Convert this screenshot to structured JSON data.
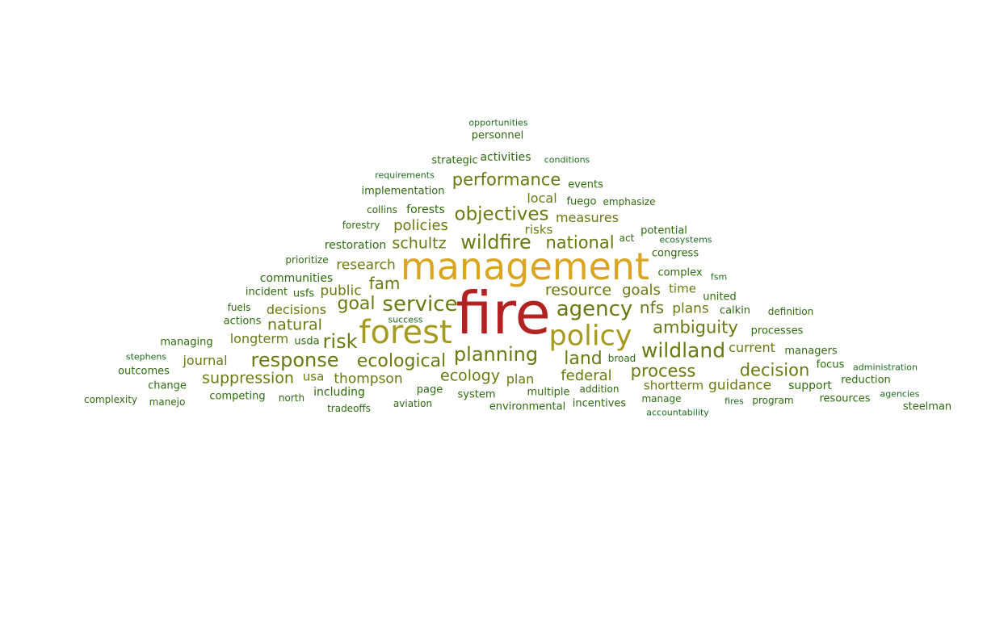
{
  "colors": {
    "tier1": "#B22222",
    "tier2": "#DAA520",
    "tier3": "#A69B1F",
    "tier4": "#6B7A10",
    "tier5": "#2E6B0E",
    "tier6": "#1E6A1E"
  },
  "words": [
    {
      "text": "fire",
      "weight": 100,
      "tier": "tier1"
    },
    {
      "text": "management",
      "weight": 70,
      "tier": "tier2"
    },
    {
      "text": "forest",
      "weight": 62,
      "tier": "tier3"
    },
    {
      "text": "policy",
      "weight": 58,
      "tier": "tier3"
    },
    {
      "text": "wildfire",
      "weight": 36,
      "tier": "tier4"
    },
    {
      "text": "agency",
      "weight": 36,
      "tier": "tier4"
    },
    {
      "text": "service",
      "weight": 36,
      "tier": "tier4"
    },
    {
      "text": "planning",
      "weight": 35,
      "tier": "tier4"
    },
    {
      "text": "wildland",
      "weight": 34,
      "tier": "tier4"
    },
    {
      "text": "objectives",
      "weight": 33,
      "tier": "tier4"
    },
    {
      "text": "response",
      "weight": 33,
      "tier": "tier4"
    },
    {
      "text": "ecological",
      "weight": 32,
      "tier": "tier4"
    },
    {
      "text": "risk",
      "weight": 32,
      "tier": "tier4"
    },
    {
      "text": "performance",
      "weight": 30,
      "tier": "tier4"
    },
    {
      "text": "national",
      "weight": 30,
      "tier": "tier4"
    },
    {
      "text": "ambiguity",
      "weight": 30,
      "tier": "tier4"
    },
    {
      "text": "land",
      "weight": 30,
      "tier": "tier4"
    },
    {
      "text": "decision",
      "weight": 30,
      "tier": "tier4"
    },
    {
      "text": "process",
      "weight": 30,
      "tier": "tier4"
    },
    {
      "text": "goal",
      "weight": 28,
      "tier": "tier4"
    },
    {
      "text": "ecology",
      "weight": 27,
      "tier": "tier4"
    },
    {
      "text": "suppression",
      "weight": 27,
      "tier": "tier4"
    },
    {
      "text": "nfs",
      "weight": 27,
      "tier": "tier4"
    },
    {
      "text": "fam",
      "weight": 27,
      "tier": "tier4"
    },
    {
      "text": "resource",
      "weight": 26,
      "tier": "tier4"
    },
    {
      "text": "federal",
      "weight": 26,
      "tier": "tier4"
    },
    {
      "text": "schultz",
      "weight": 26,
      "tier": "tier4"
    },
    {
      "text": "natural",
      "weight": 26,
      "tier": "tier4"
    },
    {
      "text": "goals",
      "weight": 25,
      "tier": "tier4"
    },
    {
      "text": "policies",
      "weight": 24,
      "tier": "tier4"
    },
    {
      "text": "thompson",
      "weight": 24,
      "tier": "tier4"
    },
    {
      "text": "research",
      "weight": 24,
      "tier": "tier4"
    },
    {
      "text": "plans",
      "weight": 24,
      "tier": "tier4"
    },
    {
      "text": "decisions",
      "weight": 24,
      "tier": "tier4"
    },
    {
      "text": "measures",
      "weight": 23,
      "tier": "tier4"
    },
    {
      "text": "public",
      "weight": 23,
      "tier": "tier4"
    },
    {
      "text": "guidance",
      "weight": 23,
      "tier": "tier4"
    },
    {
      "text": "journal",
      "weight": 22,
      "tier": "tier4"
    },
    {
      "text": "longterm",
      "weight": 22,
      "tier": "tier4"
    },
    {
      "text": "current",
      "weight": 22,
      "tier": "tier4"
    },
    {
      "text": "shortterm",
      "weight": 22,
      "tier": "tier4"
    },
    {
      "text": "local",
      "weight": 22,
      "tier": "tier4"
    },
    {
      "text": "plan",
      "weight": 22,
      "tier": "tier4"
    },
    {
      "text": "time",
      "weight": 22,
      "tier": "tier4"
    },
    {
      "text": "risks",
      "weight": 21,
      "tier": "tier4"
    },
    {
      "text": "usa",
      "weight": 20,
      "tier": "tier4"
    },
    {
      "text": "forests",
      "weight": 20,
      "tier": "tier5"
    },
    {
      "text": "activities",
      "weight": 20,
      "tier": "tier5"
    },
    {
      "text": "communities",
      "weight": 20,
      "tier": "tier5"
    },
    {
      "text": "restoration",
      "weight": 20,
      "tier": "tier5"
    },
    {
      "text": "personnel",
      "weight": 19,
      "tier": "tier5"
    },
    {
      "text": "including",
      "weight": 19,
      "tier": "tier5"
    },
    {
      "text": "page",
      "weight": 19,
      "tier": "tier5"
    },
    {
      "text": "system",
      "weight": 19,
      "tier": "tier5"
    },
    {
      "text": "multiple",
      "weight": 19,
      "tier": "tier5"
    },
    {
      "text": "support",
      "weight": 19,
      "tier": "tier5"
    },
    {
      "text": "resources",
      "weight": 19,
      "tier": "tier5"
    },
    {
      "text": "processes",
      "weight": 19,
      "tier": "tier5"
    },
    {
      "text": "complex",
      "weight": 19,
      "tier": "tier5"
    },
    {
      "text": "united",
      "weight": 19,
      "tier": "tier5"
    },
    {
      "text": "managers",
      "weight": 19,
      "tier": "tier5"
    },
    {
      "text": "change",
      "weight": 19,
      "tier": "tier5"
    },
    {
      "text": "competing",
      "weight": 18,
      "tier": "tier5"
    },
    {
      "text": "implementation",
      "weight": 18,
      "tier": "tier5"
    },
    {
      "text": "managing",
      "weight": 18,
      "tier": "tier5"
    },
    {
      "text": "outcomes",
      "weight": 18,
      "tier": "tier5"
    },
    {
      "text": "usfs",
      "weight": 18,
      "tier": "tier5"
    },
    {
      "text": "usda",
      "weight": 18,
      "tier": "tier5"
    },
    {
      "text": "actions",
      "weight": 18,
      "tier": "tier5"
    },
    {
      "text": "incident",
      "weight": 18,
      "tier": "tier5"
    },
    {
      "text": "strategic",
      "weight": 18,
      "tier": "tier5"
    },
    {
      "text": "events",
      "weight": 18,
      "tier": "tier5"
    },
    {
      "text": "congress",
      "weight": 18,
      "tier": "tier5"
    },
    {
      "text": "calkin",
      "weight": 18,
      "tier": "tier5"
    },
    {
      "text": "focus",
      "weight": 18,
      "tier": "tier5"
    },
    {
      "text": "reduction",
      "weight": 18,
      "tier": "tier5"
    },
    {
      "text": "potential",
      "weight": 18,
      "tier": "tier5"
    },
    {
      "text": "fuego",
      "weight": 18,
      "tier": "tier5"
    },
    {
      "text": "emphasize",
      "weight": 18,
      "tier": "tier5"
    },
    {
      "text": "environmental",
      "weight": 18,
      "tier": "tier5"
    },
    {
      "text": "incentives",
      "weight": 18,
      "tier": "tier5"
    },
    {
      "text": "addition",
      "weight": 18,
      "tier": "tier5"
    },
    {
      "text": "aviation",
      "weight": 18,
      "tier": "tier5"
    },
    {
      "text": "manage",
      "weight": 18,
      "tier": "tier5"
    },
    {
      "text": "program",
      "weight": 18,
      "tier": "tier5"
    },
    {
      "text": "steelman",
      "weight": 18,
      "tier": "tier5"
    },
    {
      "text": "complexity",
      "weight": 17,
      "tier": "tier5"
    },
    {
      "text": "manejo",
      "weight": 17,
      "tier": "tier5"
    },
    {
      "text": "north",
      "weight": 17,
      "tier": "tier5"
    },
    {
      "text": "tradeoffs",
      "weight": 17,
      "tier": "tier5"
    },
    {
      "text": "fuels",
      "weight": 17,
      "tier": "tier5"
    },
    {
      "text": "prioritize",
      "weight": 17,
      "tier": "tier5"
    },
    {
      "text": "collins",
      "weight": 17,
      "tier": "tier5"
    },
    {
      "text": "forestry",
      "weight": 17,
      "tier": "tier5"
    },
    {
      "text": "broad",
      "weight": 17,
      "tier": "tier5"
    },
    {
      "text": "act",
      "weight": 17,
      "tier": "tier5"
    },
    {
      "text": "definition",
      "weight": 17,
      "tier": "tier5"
    },
    {
      "text": "fsm",
      "weight": 16,
      "tier": "tier6"
    },
    {
      "text": "stephens",
      "weight": 16,
      "tier": "tier6"
    },
    {
      "text": "requirements",
      "weight": 16,
      "tier": "tier6"
    },
    {
      "text": "opportunities",
      "weight": 16,
      "tier": "tier6"
    },
    {
      "text": "conditions",
      "weight": 16,
      "tier": "tier6"
    },
    {
      "text": "success",
      "weight": 16,
      "tier": "tier6"
    },
    {
      "text": "ecosystems",
      "weight": 16,
      "tier": "tier6"
    },
    {
      "text": "administration",
      "weight": 16,
      "tier": "tier6"
    },
    {
      "text": "agencies",
      "weight": 16,
      "tier": "tier6"
    },
    {
      "text": "accountability",
      "weight": 16,
      "tier": "tier6"
    },
    {
      "text": "fires",
      "weight": 16,
      "tier": "tier6"
    }
  ]
}
